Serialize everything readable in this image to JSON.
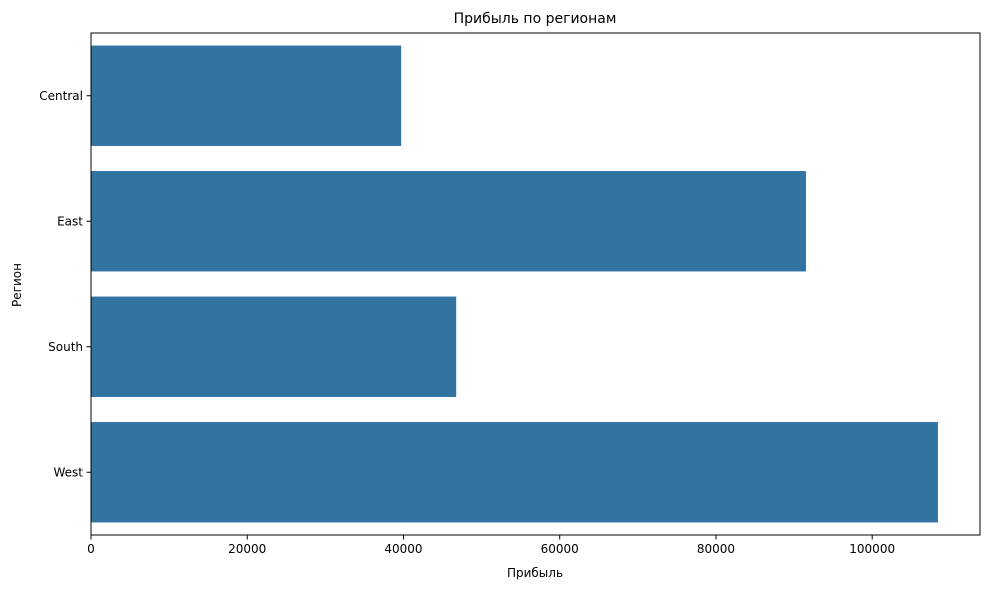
{
  "chart_data": {
    "type": "bar",
    "orientation": "horizontal",
    "title": "Прибыль по регионам",
    "xlabel": "Прибыль",
    "ylabel": "Регион",
    "categories": [
      "Central",
      "East",
      "South",
      "West"
    ],
    "values": [
      39706,
      91523,
      46750,
      108418
    ],
    "xlim": [
      0,
      113800
    ],
    "xticks": [
      0,
      20000,
      40000,
      60000,
      80000,
      100000
    ],
    "grid": false,
    "bar_color": "#3274a1"
  }
}
